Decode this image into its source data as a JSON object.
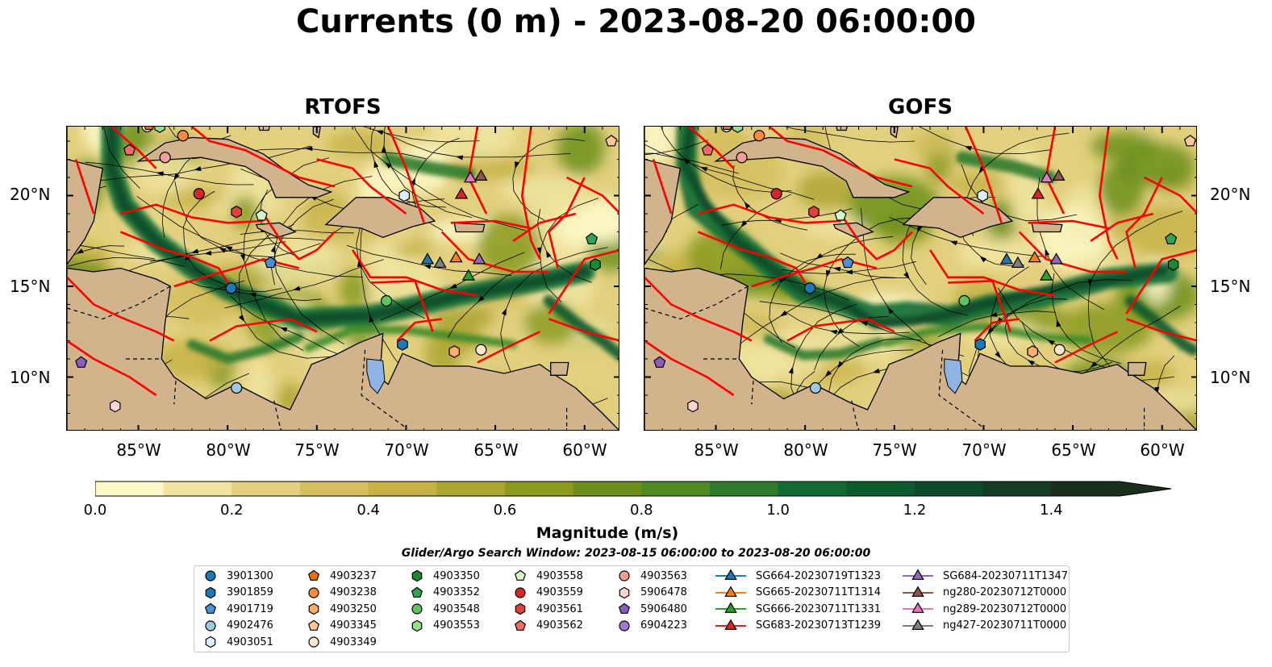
{
  "title": "Currents (0 m) - 2023-08-20 06:00:00",
  "panels": [
    {
      "title": "RTOFS"
    },
    {
      "title": "GOFS"
    }
  ],
  "lat_labels": [
    "20°N",
    "15°N",
    "10°N"
  ],
  "lon_labels": [
    "85°W",
    "80°W",
    "75°W",
    "70°W",
    "65°W",
    "60°W"
  ],
  "colorbar": {
    "label": "Magnitude (m/s)",
    "ticks": [
      "0.0",
      "0.2",
      "0.4",
      "0.6",
      "0.8",
      "1.0",
      "1.2",
      "1.4"
    ],
    "range": [
      0,
      1.5
    ],
    "extend": "max",
    "colors": [
      "#fdf8c8",
      "#f0e4a0",
      "#e2d07e",
      "#d4be5e",
      "#c6b146",
      "#aba531",
      "#8a9a1d",
      "#6b8f1a",
      "#4f8a24",
      "#2f7a2d",
      "#116b33",
      "#0c5a2e",
      "#0e4a29",
      "#153b23",
      "#1a2e1c"
    ]
  },
  "search_window": "Glider/Argo Search Window: 2023-08-15 06:00:00 to 2023-08-20 06:00:00",
  "legend": [
    {
      "label": "3901300",
      "marker": "circle",
      "color": "#1f77b4"
    },
    {
      "label": "3901859",
      "marker": "hexagon",
      "color": "#1f77b4"
    },
    {
      "label": "4901719",
      "marker": "pentagon",
      "color": "#4a90d9"
    },
    {
      "label": "4902476",
      "marker": "circle",
      "color": "#9ecae1"
    },
    {
      "label": "4903051",
      "marker": "hexagon",
      "color": "#dceefb"
    },
    {
      "label": "4903237",
      "marker": "pentagon",
      "color": "#e6730a"
    },
    {
      "label": "4903238",
      "marker": "circle",
      "color": "#f68d3e"
    },
    {
      "label": "4903250",
      "marker": "hexagon",
      "color": "#fdae6b"
    },
    {
      "label": "4903345",
      "marker": "pentagon",
      "color": "#fdc896"
    },
    {
      "label": "4903349",
      "marker": "circle",
      "color": "#fee6ce"
    },
    {
      "label": "4903350",
      "marker": "hexagon",
      "color": "#1b8a2e"
    },
    {
      "label": "4903352",
      "marker": "pentagon",
      "color": "#31a354"
    },
    {
      "label": "4903548",
      "marker": "circle",
      "color": "#5fc45f"
    },
    {
      "label": "4903553",
      "marker": "hexagon",
      "color": "#98df8a"
    },
    {
      "label": "4903558",
      "marker": "pentagon",
      "color": "#d4f5c8"
    },
    {
      "label": "4903559",
      "marker": "circle",
      "color": "#d62728"
    },
    {
      "label": "4903561",
      "marker": "hexagon",
      "color": "#e0413b"
    },
    {
      "label": "4903562",
      "marker": "pentagon",
      "color": "#f06a6a"
    },
    {
      "label": "4903563",
      "marker": "circle",
      "color": "#f4a09a"
    },
    {
      "label": "5906478",
      "marker": "hexagon",
      "color": "#fcd5d5"
    },
    {
      "label": "5906480",
      "marker": "pentagon",
      "color": "#8c5bbf"
    },
    {
      "label": "6904223",
      "marker": "circle",
      "color": "#9e7bd1"
    },
    {
      "label": "SG664-20230719T1323",
      "marker": "triangle",
      "color": "#1f77b4"
    },
    {
      "label": "SG665-20230711T1314",
      "marker": "triangle",
      "color": "#ff7f0e"
    },
    {
      "label": "SG666-20230711T1331",
      "marker": "triangle",
      "color": "#2ca02c"
    },
    {
      "label": "SG683-20230713T1239",
      "marker": "triangle",
      "color": "#d62728"
    },
    {
      "label": "SG684-20230711T1347",
      "marker": "triangle",
      "color": "#9467bd"
    },
    {
      "label": "ng280-20230712T0000",
      "marker": "triangle",
      "color": "#8c564b"
    },
    {
      "label": "ng289-20230712T0000",
      "marker": "triangle",
      "color": "#e377c2"
    },
    {
      "label": "ng427-20230711T0000",
      "marker": "triangle",
      "color": "#7f7f7f"
    }
  ],
  "colors": {
    "land": "#d2b48c",
    "boundary": "#ff0000",
    "lake": "#8eb4e3"
  }
}
